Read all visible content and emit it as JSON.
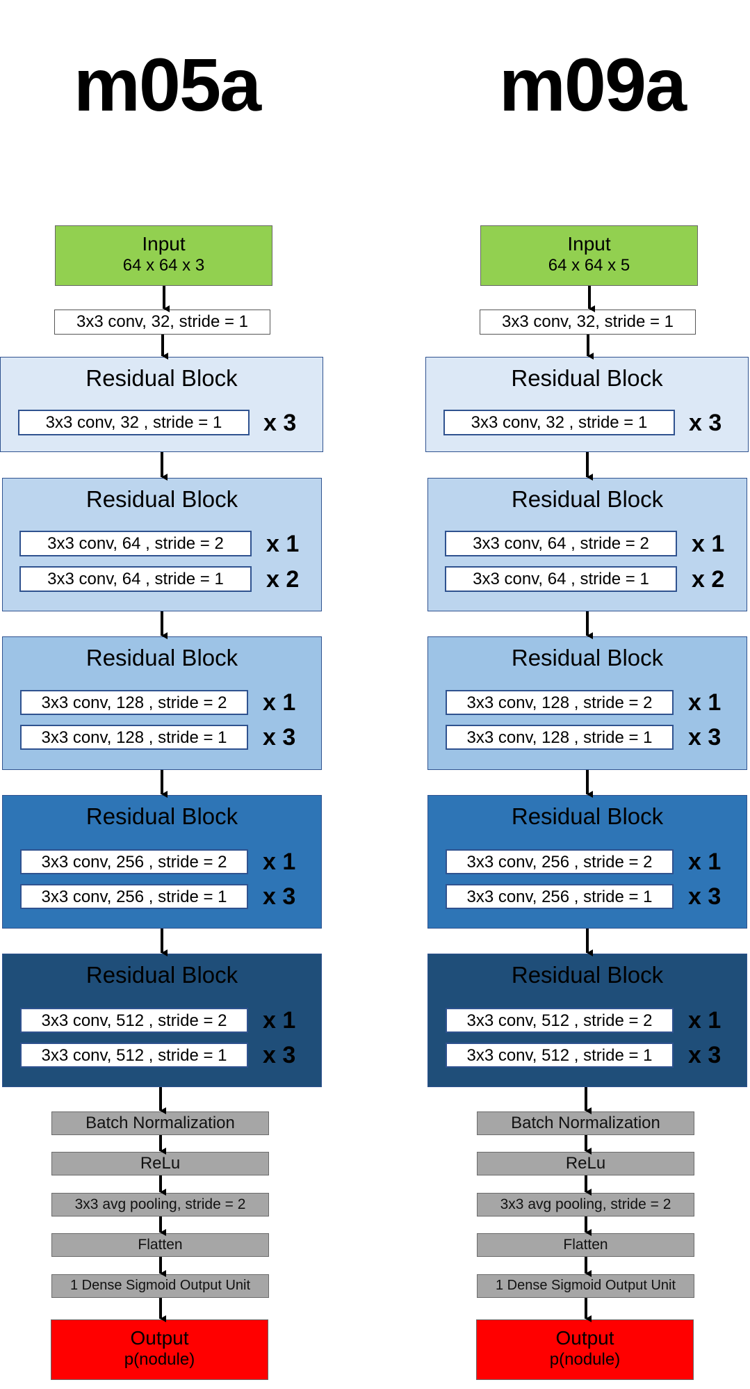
{
  "columns": [
    {
      "title": "m05a",
      "input": {
        "label": "Input",
        "shape": "64 x 64 x 3"
      },
      "first_conv": "3x3 conv, 32, stride = 1",
      "blocks": [
        {
          "title": "Residual Block",
          "color": "#dce8f6",
          "rows": [
            {
              "conv": "3x3 conv, 32 , stride = 1",
              "mult": "x 3"
            }
          ]
        },
        {
          "title": "Residual Block",
          "color": "#bcd5ee",
          "rows": [
            {
              "conv": "3x3 conv, 64 , stride = 2",
              "mult": "x 1"
            },
            {
              "conv": "3x3 conv, 64 , stride = 1",
              "mult": "x 2"
            }
          ]
        },
        {
          "title": "Residual Block",
          "color": "#9dc3e6",
          "rows": [
            {
              "conv": "3x3 conv, 128 , stride = 2",
              "mult": "x 1"
            },
            {
              "conv": "3x3 conv, 128 , stride = 1",
              "mult": "x 3"
            }
          ]
        },
        {
          "title": "Residual Block",
          "color": "#2e75b6",
          "rows": [
            {
              "conv": "3x3 conv, 256 , stride = 2",
              "mult": "x 1"
            },
            {
              "conv": "3x3 conv, 256 , stride = 1",
              "mult": "x 3"
            }
          ]
        },
        {
          "title": "Residual Block",
          "color": "#1f4e79",
          "rows": [
            {
              "conv": "3x3 conv, 512 , stride = 2",
              "mult": "x 1"
            },
            {
              "conv": "3x3 conv, 512 , stride = 1",
              "mult": "x 3"
            }
          ]
        }
      ],
      "post_layers": [
        "Batch Normalization",
        "ReLu",
        "3x3 avg pooling, stride = 2",
        "Flatten",
        "1 Dense Sigmoid Output Unit"
      ],
      "output": {
        "label": "Output",
        "sub": "p(nodule)"
      }
    },
    {
      "title": "m09a",
      "input": {
        "label": "Input",
        "shape": "64 x 64 x 5"
      },
      "first_conv": "3x3 conv, 32, stride = 1",
      "blocks": [
        {
          "title": "Residual Block",
          "color": "#dce8f6",
          "rows": [
            {
              "conv": "3x3 conv, 32 , stride = 1",
              "mult": "x 3"
            }
          ]
        },
        {
          "title": "Residual Block",
          "color": "#bcd5ee",
          "rows": [
            {
              "conv": "3x3 conv, 64 , stride = 2",
              "mult": "x 1"
            },
            {
              "conv": "3x3 conv, 64 , stride = 1",
              "mult": "x 2"
            }
          ]
        },
        {
          "title": "Residual Block",
          "color": "#9dc3e6",
          "rows": [
            {
              "conv": "3x3 conv, 128 , stride = 2",
              "mult": "x 1"
            },
            {
              "conv": "3x3 conv, 128 , stride = 1",
              "mult": "x 3"
            }
          ]
        },
        {
          "title": "Residual Block",
          "color": "#2e75b6",
          "rows": [
            {
              "conv": "3x3 conv, 256 , stride = 2",
              "mult": "x 1"
            },
            {
              "conv": "3x3 conv, 256 , stride = 1",
              "mult": "x 3"
            }
          ]
        },
        {
          "title": "Residual Block",
          "color": "#1f4e79",
          "rows": [
            {
              "conv": "3x3 conv, 512 , stride = 2",
              "mult": "x 1"
            },
            {
              "conv": "3x3 conv, 512 , stride = 1",
              "mult": "x 3"
            }
          ]
        }
      ],
      "post_layers": [
        "Batch Normalization",
        "ReLu",
        "3x3 avg pooling, stride = 2",
        "Flatten",
        "1 Dense Sigmoid Output Unit"
      ],
      "output": {
        "label": "Output",
        "sub": "p(nodule)"
      }
    }
  ]
}
